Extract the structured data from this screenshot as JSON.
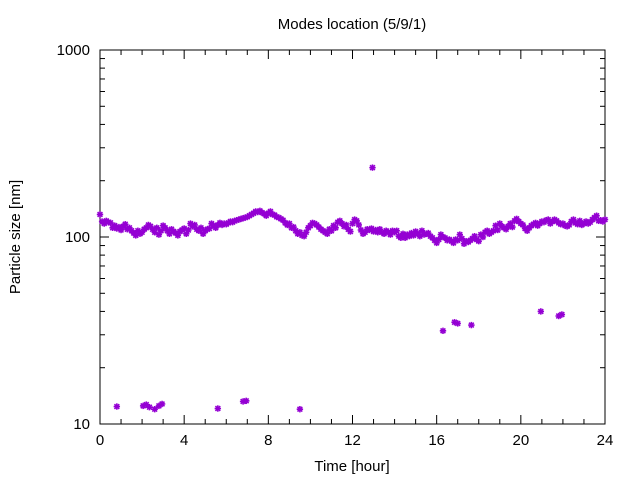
{
  "chart_data": {
    "type": "scatter",
    "title": "Modes location (5/9/1)",
    "xlabel": "Time [hour]",
    "ylabel": "Particle size [nm]",
    "xlim": [
      0,
      24
    ],
    "ylim": [
      10,
      1000
    ],
    "yscale": "log",
    "grid": false,
    "legend": "none",
    "marker_color": "#9400d3",
    "xticks": [
      0,
      4,
      8,
      12,
      16,
      20,
      24
    ],
    "xtick_labels": [
      "0",
      "4",
      "8",
      "12",
      "16",
      "20",
      "24"
    ],
    "yticks": [
      10,
      100,
      1000
    ],
    "ytick_labels": [
      "10",
      "100",
      "1000"
    ],
    "series": [
      {
        "x": [
          0.0,
          0.1,
          0.2,
          0.3,
          0.4,
          0.5,
          0.6,
          0.7,
          0.8,
          0.9,
          1.0,
          1.1,
          1.2,
          1.3,
          1.4,
          1.5,
          1.6,
          1.7,
          1.8,
          1.9,
          2.0,
          2.1,
          2.2,
          2.3,
          2.4,
          2.5,
          2.6,
          2.7,
          2.8,
          2.9,
          3.0,
          3.1,
          3.2,
          3.3,
          3.4,
          3.5,
          3.6,
          3.7,
          3.8,
          3.9,
          4.0,
          4.1,
          4.2,
          4.3,
          4.4,
          4.5,
          4.6,
          4.7,
          4.8,
          4.9,
          5.0,
          5.1,
          5.2,
          5.3,
          5.4,
          5.5,
          5.6,
          5.7,
          5.8,
          5.9,
          6.0,
          6.1,
          6.2,
          6.3,
          6.4,
          6.5,
          6.6,
          6.7,
          6.8,
          6.9,
          7.0,
          7.1,
          7.2,
          7.3,
          7.4,
          7.5,
          7.6,
          7.7,
          7.8,
          7.9,
          8.0,
          8.1,
          8.2,
          8.3,
          8.4,
          8.5,
          8.6,
          8.7,
          8.8,
          8.9,
          9.0,
          9.1,
          9.2,
          9.3,
          9.4,
          9.5,
          9.6,
          9.7,
          9.8,
          9.9,
          10.0,
          10.1,
          10.2,
          10.3,
          10.4,
          10.5,
          10.6,
          10.7,
          10.8,
          10.9,
          11.0,
          11.1,
          11.2,
          11.3,
          11.4,
          11.5,
          11.6,
          11.7,
          11.8,
          11.9,
          12.0,
          12.1,
          12.2,
          12.3,
          12.4,
          12.5,
          12.6,
          12.7,
          12.8,
          12.9,
          13.0,
          13.1,
          13.2,
          13.3,
          13.4,
          13.5,
          13.6,
          13.7,
          13.8,
          13.9,
          14.0,
          14.1,
          14.2,
          14.3,
          14.4,
          14.5,
          14.6,
          14.7,
          14.8,
          14.9,
          15.0,
          15.1,
          15.2,
          15.3,
          15.4,
          15.5,
          15.6,
          15.7,
          15.8,
          15.9,
          16.0,
          16.1,
          16.2,
          16.3,
          16.4,
          16.5,
          16.6,
          16.7,
          16.8,
          16.9,
          17.0,
          17.1,
          17.2,
          17.3,
          17.4,
          17.5,
          17.6,
          17.7,
          17.8,
          17.9,
          18.0,
          18.1,
          18.2,
          18.3,
          18.4,
          18.5,
          18.6,
          18.7,
          18.8,
          18.9,
          19.0,
          19.1,
          19.2,
          19.3,
          19.4,
          19.5,
          19.6,
          19.7,
          19.8,
          19.9,
          20.0,
          20.1,
          20.2,
          20.3,
          20.4,
          20.5,
          20.6,
          20.7,
          20.8,
          20.9,
          21.0,
          21.1,
          21.2,
          21.3,
          21.4,
          21.5,
          21.6,
          21.7,
          21.8,
          21.9,
          22.0,
          22.1,
          22.2,
          22.3,
          22.4,
          22.5,
          22.6,
          22.7,
          22.8,
          22.9,
          23.0,
          23.1,
          23.2,
          23.3,
          23.4,
          23.5,
          23.6,
          23.7,
          23.8,
          23.9,
          24.0,
          12.95,
          0.8,
          2.05,
          2.2,
          2.35,
          2.6,
          2.8,
          2.95,
          5.6,
          6.8,
          6.95,
          9.5,
          16.3,
          16.85,
          17.0,
          17.65,
          20.95,
          21.8,
          21.95
        ],
        "y": [
          132,
          121,
          118,
          122,
          120,
          119,
          112,
          115,
          111,
          113,
          109,
          114,
          117,
          110,
          112,
          108,
          105,
          102,
          108,
          104,
          106,
          110,
          112,
          116,
          114,
          110,
          106,
          112,
          103,
          108,
          115,
          112,
          108,
          104,
          110,
          107,
          105,
          102,
          107,
          109,
          111,
          104,
          109,
          118,
          114,
          116,
          110,
          108,
          112,
          104,
          108,
          110,
          111,
          118,
          115,
          112,
          116,
          119,
          116,
          118,
          117,
          119,
          121,
          120,
          122,
          123,
          124,
          125,
          126,
          127,
          128,
          130,
          132,
          134,
          137,
          136,
          138,
          135,
          133,
          130,
          134,
          137,
          132,
          131,
          128,
          127,
          125,
          123,
          119,
          116,
          118,
          112,
          113,
          108,
          104,
          106,
          102,
          101,
          106,
          112,
          115,
          119,
          118,
          116,
          113,
          110,
          108,
          106,
          104,
          110,
          108,
          115,
          112,
          120,
          122,
          118,
          114,
          116,
          110,
          107,
          118,
          124,
          122,
          116,
          109,
          104,
          106,
          110,
          109,
          111,
          107,
          109,
          106,
          110,
          106,
          104,
          108,
          106,
          103,
          108,
          106,
          108,
          101,
          99,
          104,
          99,
          103,
          101,
          105,
          102,
          107,
          104,
          101,
          108,
          103,
          104,
          105,
          101,
          99,
          96,
          93,
          97,
          103,
          100,
          99,
          96,
          97,
          95,
          93,
          97,
          96,
          103,
          98,
          92,
          95,
          94,
          96,
          98,
          101,
          97,
          95,
          103,
          100,
          106,
          108,
          104,
          106,
          108,
          115,
          109,
          118,
          114,
          112,
          110,
          114,
          118,
          113,
          122,
          125,
          121,
          118,
          116,
          111,
          108,
          112,
          115,
          117,
          119,
          115,
          118,
          121,
          120,
          123,
          124,
          118,
          121,
          124,
          122,
          119,
          117,
          118,
          115,
          114,
          116,
          121,
          124,
          119,
          117,
          122,
          116,
          118,
          121,
          118,
          120,
          124,
          127,
          130,
          122,
          123,
          121,
          124,
          235,
          12.4,
          12.5,
          12.7,
          12.3,
          12.0,
          12.5,
          12.8,
          12.1,
          13.2,
          13.3,
          12.0,
          31.5,
          35.0,
          34.5,
          33.8,
          40.0,
          37.8,
          38.5
        ]
      }
    ]
  }
}
